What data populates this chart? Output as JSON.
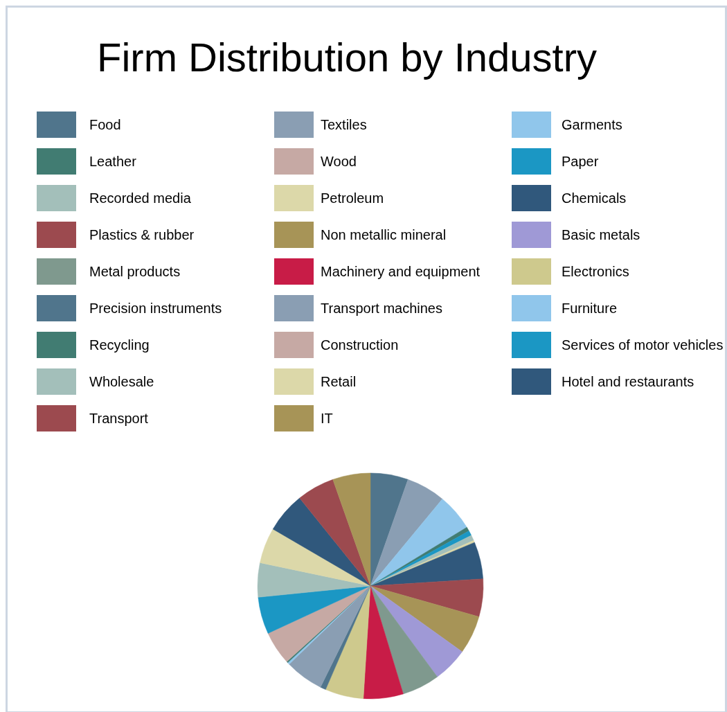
{
  "chart_data": {
    "type": "pie",
    "title": "Firm Distribution by Industry",
    "legend": "top",
    "categories": [
      "Food",
      "Textiles",
      "Garments",
      "Leather",
      "Wood",
      "Paper",
      "Recorded media",
      "Petroleum",
      "Chemicals",
      "Plastics & rubber",
      "Non metallic mineral",
      "Basic metals",
      "Metal products",
      "Machinery and equipment",
      "Electronics",
      "Precision instruments",
      "Transport machines",
      "Furniture",
      "Recycling",
      "Construction",
      "Services of motor vehicles",
      "Wholesale",
      "Retail",
      "Hotel and restaurants",
      "Transport",
      "IT"
    ],
    "values": [
      5.4,
      5.6,
      5.3,
      0.6,
      0,
      0.7,
      0.8,
      0.3,
      5.3,
      5.4,
      5.5,
      5.0,
      5.4,
      5.7,
      5.5,
      0.8,
      5.5,
      0.3,
      0.2,
      4.8,
      5.3,
      4.9,
      5.1,
      5.8,
      5.4,
      5.4
    ],
    "colors": [
      "#50758c",
      "#8a9eb3",
      "#90c6eb",
      "#417c72",
      "#c6a9a4",
      "#1b97c4",
      "#a3bfba",
      "#dcd8a9",
      "#30587c",
      "#9c4a4f",
      "#a79457",
      "#9f99d6",
      "#7f998e",
      "#c81c47",
      "#cec98d",
      "#50758c",
      "#8a9eb3",
      "#90c6eb",
      "#417c72",
      "#c6a9a4",
      "#1b97c4",
      "#a3bfba",
      "#dcd8a9",
      "#30587c",
      "#9c4a4f",
      "#a79457"
    ]
  }
}
